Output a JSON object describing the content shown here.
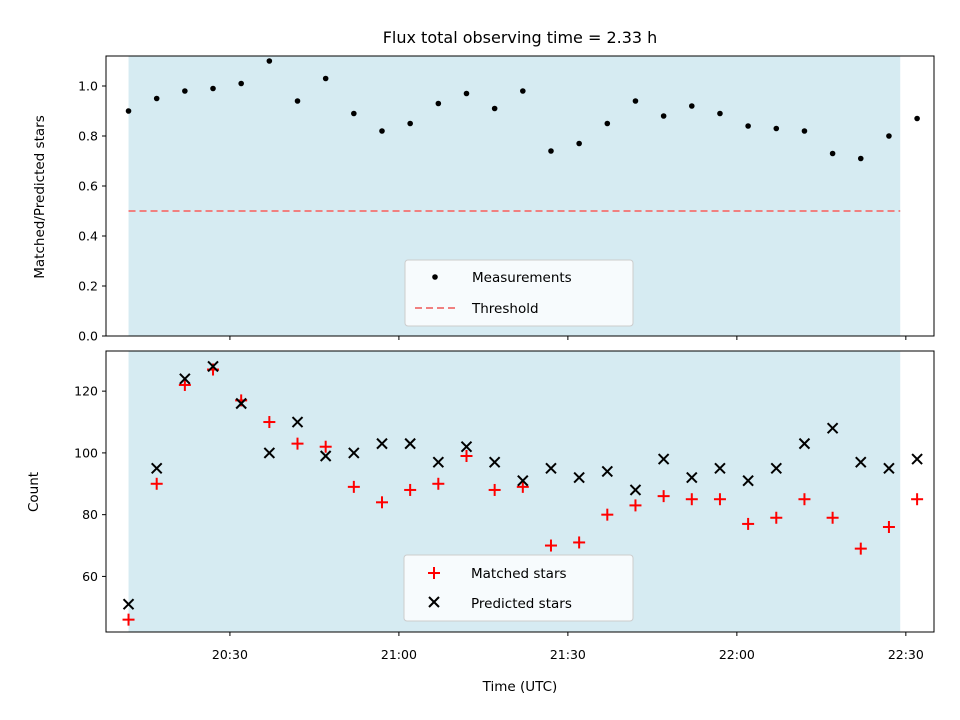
{
  "chart_data": [
    {
      "type": "scatter",
      "title": "Flux total observing time = 2.33 h",
      "ylabel": "Matched/Predicted stars",
      "xlabel": "",
      "xlim": [
        "20:08",
        "22:35"
      ],
      "ylim": [
        0,
        1.12
      ],
      "yticks": [
        0.0,
        0.2,
        0.4,
        0.6,
        0.8,
        1.0
      ],
      "ytick_labels": [
        "0.0",
        "0.2",
        "0.4",
        "0.6",
        "0.8",
        "1.0"
      ],
      "shaded_span": [
        "20:12",
        "22:29"
      ],
      "shaded_color": "#add8e6",
      "legend_position": "lower center",
      "x": [
        "20:12",
        "20:17",
        "20:22",
        "20:27",
        "20:32",
        "20:37",
        "20:42",
        "20:47",
        "20:52",
        "20:57",
        "21:02",
        "21:07",
        "21:12",
        "21:17",
        "21:22",
        "21:27",
        "21:32",
        "21:37",
        "21:42",
        "21:47",
        "21:52",
        "21:57",
        "22:02",
        "22:07",
        "22:12",
        "22:17",
        "22:22",
        "22:27",
        "22:32"
      ],
      "series": [
        {
          "name": "Measurements",
          "marker": "dot",
          "color": "#000000",
          "values": [
            0.9,
            0.95,
            0.98,
            0.99,
            1.01,
            1.1,
            0.94,
            1.03,
            0.89,
            0.82,
            0.85,
            0.93,
            0.97,
            0.91,
            0.98,
            0.74,
            0.77,
            0.85,
            0.94,
            0.88,
            0.92,
            0.89,
            0.84,
            0.83,
            0.82,
            0.73,
            0.71,
            0.8,
            0.87
          ]
        }
      ],
      "threshold": {
        "name": "Threshold",
        "value": 0.5,
        "color": "#f08080",
        "style": "dashed"
      }
    },
    {
      "type": "scatter",
      "title": "",
      "ylabel": "Count",
      "xlabel": "Time (UTC)",
      "xlim": [
        "20:08",
        "22:35"
      ],
      "ylim": [
        42,
        133
      ],
      "yticks": [
        60,
        80,
        100,
        120
      ],
      "ytick_labels": [
        "60",
        "80",
        "100",
        "120"
      ],
      "xticks": [
        "20:30",
        "21:00",
        "21:30",
        "22:00",
        "22:30"
      ],
      "shaded_span": [
        "20:12",
        "22:29"
      ],
      "shaded_color": "#add8e6",
      "legend_position": "lower center",
      "x": [
        "20:12",
        "20:17",
        "20:22",
        "20:27",
        "20:32",
        "20:37",
        "20:42",
        "20:47",
        "20:52",
        "20:57",
        "21:02",
        "21:07",
        "21:12",
        "21:17",
        "21:22",
        "21:27",
        "21:32",
        "21:37",
        "21:42",
        "21:47",
        "21:52",
        "21:57",
        "22:02",
        "22:07",
        "22:12",
        "22:17",
        "22:22",
        "22:27",
        "22:32"
      ],
      "series": [
        {
          "name": "Matched stars",
          "marker": "plus",
          "color": "#ff0000",
          "values": [
            46,
            90,
            122,
            127,
            117,
            110,
            103,
            102,
            89,
            84,
            88,
            90,
            99,
            88,
            89,
            70,
            71,
            80,
            83,
            86,
            85,
            85,
            77,
            79,
            85,
            79,
            69,
            76,
            85
          ]
        },
        {
          "name": "Predicted stars",
          "marker": "x",
          "color": "#000000",
          "values": [
            51,
            95,
            124,
            128,
            116,
            100,
            110,
            99,
            100,
            103,
            103,
            97,
            102,
            97,
            91,
            95,
            92,
            94,
            88,
            98,
            92,
            95,
            91,
            95,
            103,
            108,
            97,
            95,
            98
          ]
        }
      ]
    }
  ]
}
